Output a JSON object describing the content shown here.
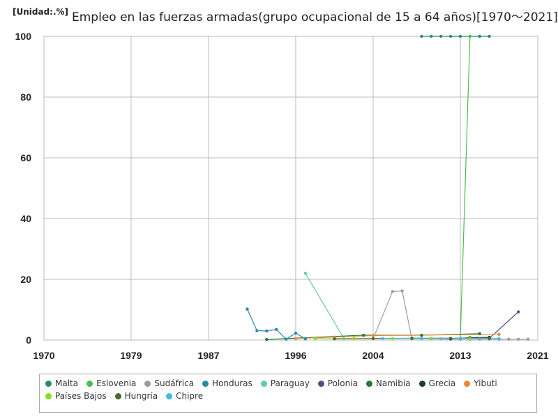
{
  "header": {
    "unit": "[Unidad:.%]",
    "title": "Empleo en las fuerzas armadas(grupo ocupacional de 15 a 64 años)[1970～2021]"
  },
  "chart_data": {
    "type": "line",
    "title": "Empleo en las fuerzas armadas(grupo ocupacional de 15 a 64 años)[1970～2021]",
    "xlabel": "",
    "ylabel": "",
    "xlim": [
      1970,
      2021
    ],
    "ylim": [
      0,
      100
    ],
    "x_ticks": [
      "1970",
      "1979",
      "1987",
      "1996",
      "2004",
      "2013",
      "2021"
    ],
    "y_ticks": [
      "0",
      "20",
      "40",
      "60",
      "80",
      "100"
    ],
    "grid": true,
    "legend_position": "bottom",
    "series": [
      {
        "name": "Malta",
        "color": "#2a8a6a",
        "points": [
          [
            2009,
            100
          ],
          [
            2010,
            100
          ],
          [
            2011,
            100
          ],
          [
            2012,
            100
          ],
          [
            2013,
            100
          ],
          [
            2014,
            100
          ],
          [
            2015,
            100
          ],
          [
            2016,
            100
          ]
        ]
      },
      {
        "name": "Eslovenia",
        "color": "#4dbb4d",
        "points": [
          [
            2013,
            0.3
          ],
          [
            2014,
            100
          ]
        ]
      },
      {
        "name": "Sudáfrica",
        "color": "#9a9aaa",
        "points": [
          [
            2004,
            0.5
          ],
          [
            2006,
            16
          ],
          [
            2007,
            16.2
          ],
          [
            2008,
            0.4
          ],
          [
            2009,
            0.4
          ],
          [
            2010,
            0.4
          ],
          [
            2011,
            0.4
          ],
          [
            2012,
            0.3
          ],
          [
            2013,
            0.3
          ],
          [
            2014,
            0.3
          ],
          [
            2015,
            0.3
          ],
          [
            2016,
            0.3
          ],
          [
            2017,
            0.3
          ],
          [
            2018,
            0.3
          ],
          [
            2019,
            0.3
          ],
          [
            2020,
            0.3
          ]
        ]
      },
      {
        "name": "Honduras",
        "color": "#2a8aa8",
        "points": [
          [
            1991,
            10.2
          ],
          [
            1992,
            3.1
          ],
          [
            1993,
            3.0
          ],
          [
            1994,
            3.5
          ],
          [
            1995,
            0.3
          ],
          [
            1996,
            2.3
          ],
          [
            1997,
            0.4
          ]
        ]
      },
      {
        "name": "Paraguay",
        "color": "#66cc99",
        "points": [
          [
            1997,
            22
          ],
          [
            2001,
            0.4
          ]
        ]
      },
      {
        "name": "Polonia",
        "color": "#5a4a8a",
        "points": [
          [
            2016,
            0.6
          ],
          [
            2019,
            9.3
          ]
        ]
      },
      {
        "name": "Namibia",
        "color": "#227a3a",
        "points": [
          [
            1993,
            0.2
          ],
          [
            2003,
            1.6
          ],
          [
            2009,
            1.6
          ],
          [
            2015,
            2.1
          ]
        ]
      },
      {
        "name": "Grecia",
        "color": "#1a3a3a",
        "points": [
          [
            2008,
            0.6
          ],
          [
            2010,
            0.5
          ],
          [
            2012,
            0.4
          ],
          [
            2014,
            0.8
          ],
          [
            2016,
            0.9
          ]
        ]
      },
      {
        "name": "Yibuti",
        "color": "#e88a3a",
        "points": [
          [
            1996,
            0.5
          ],
          [
            2000,
            1.0
          ],
          [
            2004,
            1.5
          ],
          [
            2017,
            1.9
          ]
        ]
      },
      {
        "name": "Países Bajos",
        "color": "#88dd22",
        "points": [
          [
            1998,
            0.5
          ],
          [
            2002,
            0.5
          ],
          [
            2006,
            0.5
          ],
          [
            2010,
            0.5
          ],
          [
            2014,
            0.5
          ]
        ]
      },
      {
        "name": "Hungría",
        "color": "#4a6a2a",
        "points": [
          [
            2000,
            0.4
          ],
          [
            2004,
            0.5
          ],
          [
            2008,
            0.6
          ],
          [
            2012,
            0.6
          ],
          [
            2016,
            0.6
          ]
        ]
      },
      {
        "name": "Chipre",
        "color": "#44bbdd",
        "points": [
          [
            2005,
            0.5
          ],
          [
            2009,
            0.6
          ],
          [
            2013,
            0.6
          ],
          [
            2017,
            0.5
          ]
        ]
      }
    ]
  }
}
